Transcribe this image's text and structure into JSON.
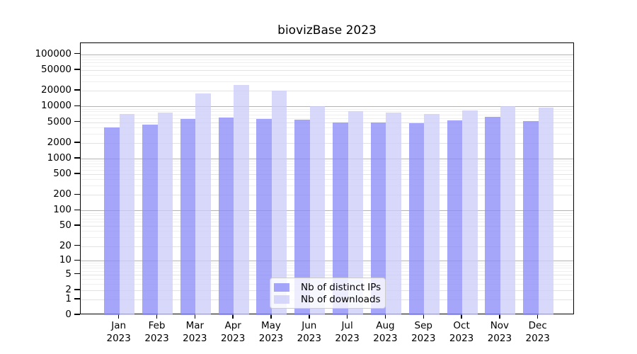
{
  "chart_data": {
    "type": "bar",
    "title": "biovizBase 2023",
    "categories": [
      "Jan 2023",
      "Feb 2023",
      "Mar 2023",
      "Apr 2023",
      "May 2023",
      "Jun 2023",
      "Jul 2023",
      "Aug 2023",
      "Sep 2023",
      "Oct 2023",
      "Nov 2023",
      "Dec 2023"
    ],
    "series": [
      {
        "name": "Nb of distinct IPs",
        "color": "rgba(140,140,248,0.78)",
        "values": [
          3960,
          4530,
          5760,
          6040,
          5760,
          5530,
          4980,
          4880,
          4820,
          5410,
          6300,
          5250
        ]
      },
      {
        "name": "Nb of downloads",
        "color": "rgba(205,205,250,0.78)",
        "values": [
          7070,
          7620,
          17600,
          25500,
          19900,
          10100,
          8200,
          7570,
          7170,
          8450,
          10100,
          9600
        ]
      }
    ],
    "xlabel": "",
    "ylabel": "",
    "yscale": "log1p",
    "ylim": [
      0,
      163000
    ],
    "yticks": [
      0,
      1,
      2,
      5,
      10,
      20,
      50,
      100,
      200,
      500,
      1000,
      2000,
      5000,
      10000,
      20000,
      50000,
      100000
    ],
    "grid": "horizontal",
    "legend_position": "lower center",
    "colors": {
      "grid_major": "#b3b3b3",
      "grid_mid": "#e2e2e2",
      "grid_minor": "#efefef",
      "spine": "#000000",
      "background": "#ffffff"
    }
  }
}
